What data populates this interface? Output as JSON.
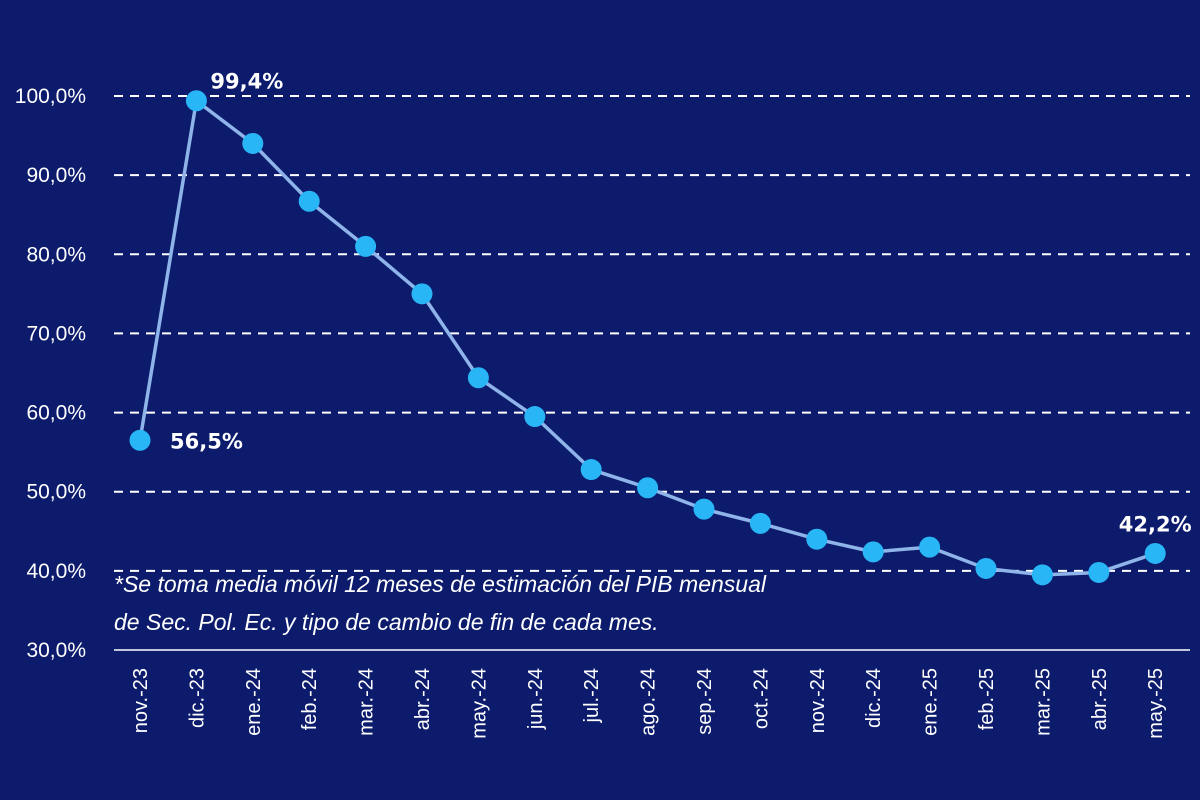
{
  "colors": {
    "background": "#0c1b6c",
    "line": "#8fb4ea",
    "marker": "#29b6f6",
    "grid": "#ffffff",
    "text": "#ffffff"
  },
  "note": {
    "line1": "*Se toma media móvil 12 meses de estimación del PIB mensual",
    "line2": "de Sec. Pol. Ec. y tipo de cambio de fin de cada mes."
  },
  "chart_data": {
    "type": "line",
    "title": "",
    "xlabel": "",
    "ylabel": "",
    "ylim": [
      30,
      100
    ],
    "yticks": [
      "30,0%",
      "40,0%",
      "50,0%",
      "60,0%",
      "70,0%",
      "80,0%",
      "90,0%",
      "100,0%"
    ],
    "ytick_values": [
      30,
      40,
      50,
      60,
      70,
      80,
      90,
      100
    ],
    "grid": "horizontal dashed",
    "legend": "none",
    "categories": [
      "nov.-23",
      "dic.-23",
      "ene.-24",
      "feb.-24",
      "mar.-24",
      "abr.-24",
      "may.-24",
      "jun.-24",
      "jul.-24",
      "ago.-24",
      "sep.-24",
      "oct.-24",
      "nov.-24",
      "dic.-24",
      "ene.-25",
      "feb.-25",
      "mar.-25",
      "abr.-25",
      "may.-25"
    ],
    "series": [
      {
        "values": [
          56.5,
          99.4,
          94.0,
          86.7,
          81.0,
          75.0,
          64.4,
          59.5,
          52.8,
          50.5,
          47.8,
          46.0,
          44.0,
          42.4,
          43.0,
          40.3,
          39.5,
          39.8,
          42.2
        ]
      }
    ],
    "data_labels": [
      {
        "index": 0,
        "text": "56,5%"
      },
      {
        "index": 1,
        "text": "99,4%"
      },
      {
        "index": 18,
        "text": "42,2%"
      }
    ]
  }
}
